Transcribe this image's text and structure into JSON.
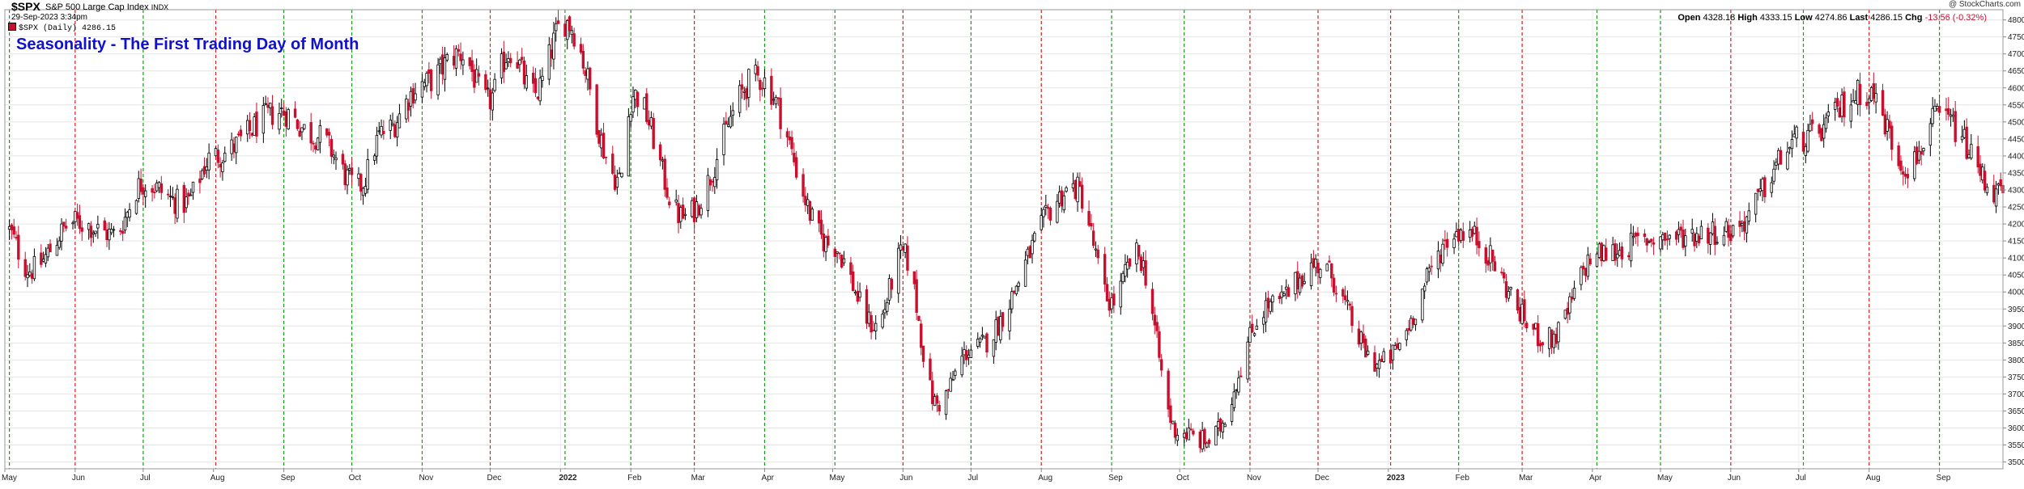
{
  "header": {
    "symbol": "$SPX",
    "name": "S&P 500 Large Cap Index",
    "exchange": "INDX",
    "datetime": "29-Sep-2023 3:34pm",
    "legend_label": "$SPX (Daily) 4286.15",
    "copyright": "@ StockCharts.com",
    "open_label": "Open",
    "open": "4328.18",
    "high_label": "High",
    "high": "4333.15",
    "low_label": "Low",
    "low": "4274.86",
    "last_label": "Last",
    "last": "4286.15",
    "chg_label": "Chg",
    "chg": "-13.56 (-0.32%)"
  },
  "chart_data": {
    "type": "candlestick",
    "title": "Seasonality - The First Trading Day of Month",
    "period": "Daily",
    "x_range": [
      "2021-05-01",
      "2023-09-29"
    ],
    "ylim": [
      3480,
      4830
    ],
    "y_ticks": [
      3500,
      3550,
      3600,
      3650,
      3700,
      3750,
      3800,
      3850,
      3900,
      3950,
      4000,
      4050,
      4100,
      4150,
      4200,
      4250,
      4300,
      4350,
      4400,
      4450,
      4500,
      4550,
      4600,
      4650,
      4700,
      4750,
      4800
    ],
    "x_tick_labels": [
      "May",
      "Jun",
      "Jul",
      "Aug",
      "Sep",
      "Oct",
      "Nov",
      "Dec",
      "2022",
      "Feb",
      "Mar",
      "Apr",
      "May",
      "Jun",
      "Jul",
      "Aug",
      "Sep",
      "Oct",
      "Nov",
      "Dec",
      "2023",
      "Feb",
      "Mar",
      "Apr",
      "May",
      "Jun",
      "Jul",
      "Aug",
      "Sep"
    ],
    "grid": true,
    "colors": {
      "up": "#000000",
      "down": "#c8102e",
      "line_green": "#1a9a1a",
      "line_red": "#d42020",
      "title": "#1010d0"
    },
    "month_first_day_lines": [
      {
        "month": "May",
        "color": "green"
      },
      {
        "month": "Jun",
        "color": "red"
      },
      {
        "month": "Jul",
        "color": "green"
      },
      {
        "month": "Aug",
        "color": "red"
      },
      {
        "month": "Sep",
        "color": "green"
      },
      {
        "month": "Oct",
        "color": "green"
      },
      {
        "month": "Nov",
        "color": "green"
      },
      {
        "month": "Dec",
        "color": "red"
      },
      {
        "month": "2022",
        "color": "green"
      },
      {
        "month": "Feb",
        "color": "green"
      },
      {
        "month": "Mar",
        "color": "red"
      },
      {
        "month": "Apr",
        "color": "green"
      },
      {
        "month": "May",
        "color": "green"
      },
      {
        "month": "Jun",
        "color": "red"
      },
      {
        "month": "Jul",
        "color": "green"
      },
      {
        "month": "Aug",
        "color": "red"
      },
      {
        "month": "Sep",
        "color": "green"
      },
      {
        "month": "Oct",
        "color": "green"
      },
      {
        "month": "Nov",
        "color": "red"
      },
      {
        "month": "Dec",
        "color": "red"
      },
      {
        "month": "2023",
        "color": "red"
      },
      {
        "month": "Feb",
        "color": "green"
      },
      {
        "month": "Mar",
        "color": "red"
      },
      {
        "month": "Apr",
        "color": "green"
      },
      {
        "month": "May",
        "color": "green"
      },
      {
        "month": "Jun",
        "color": "red"
      },
      {
        "month": "Jul",
        "color": "green"
      },
      {
        "month": "Aug",
        "color": "red"
      },
      {
        "month": "Sep",
        "color": "green"
      }
    ],
    "anchors": [
      [
        "2021-05-01",
        4190
      ],
      [
        "2021-05-12",
        4065
      ],
      [
        "2021-06-01",
        4205
      ],
      [
        "2021-06-18",
        4170
      ],
      [
        "2021-07-01",
        4320
      ],
      [
        "2021-07-19",
        4260
      ],
      [
        "2021-08-01",
        4400
      ],
      [
        "2021-08-31",
        4530
      ],
      [
        "2021-09-15",
        4460
      ],
      [
        "2021-10-04",
        4310
      ],
      [
        "2021-10-15",
        4470
      ],
      [
        "2021-11-01",
        4610
      ],
      [
        "2021-11-18",
        4700
      ],
      [
        "2021-11-30",
        4560
      ],
      [
        "2021-12-10",
        4710
      ],
      [
        "2021-12-20",
        4580
      ],
      [
        "2022-01-03",
        4796
      ],
      [
        "2022-01-27",
        4330
      ],
      [
        "2022-02-02",
        4580
      ],
      [
        "2022-02-24",
        4220
      ],
      [
        "2022-03-29",
        4630
      ],
      [
        "2022-04-30",
        4140
      ],
      [
        "2022-05-20",
        3900
      ],
      [
        "2022-06-01",
        4110
      ],
      [
        "2022-06-16",
        3670
      ],
      [
        "2022-07-01",
        3830
      ],
      [
        "2022-08-16",
        4305
      ],
      [
        "2022-09-01",
        3970
      ],
      [
        "2022-09-12",
        4110
      ],
      [
        "2022-09-30",
        3590
      ],
      [
        "2022-10-13",
        3560
      ],
      [
        "2022-11-10",
        3960
      ],
      [
        "2022-12-01",
        4080
      ],
      [
        "2022-12-28",
        3790
      ],
      [
        "2023-02-02",
        4180
      ],
      [
        "2023-03-13",
        3860
      ],
      [
        "2023-04-03",
        4110
      ],
      [
        "2023-05-01",
        4160
      ],
      [
        "2023-05-31",
        4180
      ],
      [
        "2023-07-03",
        4450
      ],
      [
        "2023-07-31",
        4590
      ],
      [
        "2023-08-18",
        4370
      ],
      [
        "2023-09-01",
        4515
      ],
      [
        "2023-09-29",
        4286
      ]
    ]
  }
}
